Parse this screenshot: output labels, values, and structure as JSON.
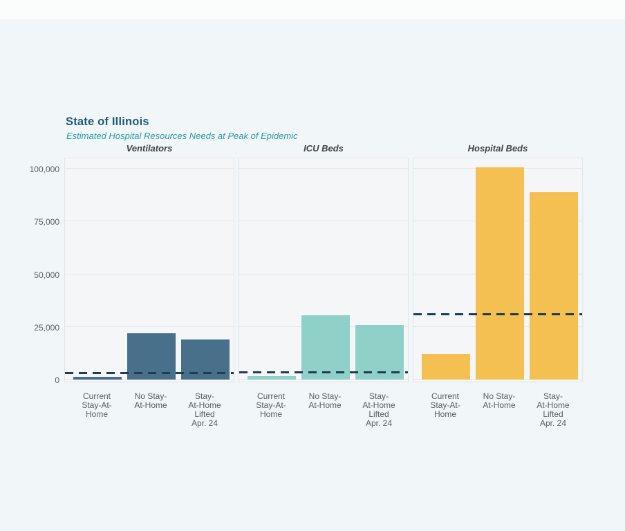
{
  "header": {
    "title": "State of Illinois",
    "subtitle": "Estimated Hospital Resources Needs at Peak of Epidemic"
  },
  "chart_data": {
    "type": "bar",
    "layout": "three side-by-side facet panels sharing one y-axis, legend none, horizontal gridlines on",
    "title": "State of Illinois",
    "subtitle": "Estimated Hospital Resources Needs at Peak of Epidemic",
    "categories": [
      "Current Stay-At-Home",
      "No Stay-At-Home",
      "Stay-At-Home Lifted Apr. 24"
    ],
    "category_label_lines": [
      [
        "Current",
        "Stay-At-",
        "Home"
      ],
      [
        "No Stay-",
        "At-Home"
      ],
      [
        "Stay-",
        "At-Home",
        "Lifted",
        "Apr. 24"
      ]
    ],
    "ylim": [
      0,
      105000
    ],
    "yticks": [
      0,
      25000,
      50000,
      75000,
      100000
    ],
    "ytick_labels": [
      "0",
      "25,000",
      "50,000",
      "75,000",
      "100,000"
    ],
    "panels": [
      {
        "title": "Ventilators",
        "bar_color": "#48708a",
        "values": [
          1300,
          22000,
          19000
        ],
        "dashed_line_value": 3000
      },
      {
        "title": "ICU Beds",
        "bar_color": "#8fd0c8",
        "values": [
          1600,
          30500,
          26000
        ],
        "dashed_line_value": 3300
      },
      {
        "title": "Hospital Beds",
        "bar_color": "#f3c051",
        "values": [
          12000,
          100500,
          89000
        ],
        "dashed_line_value": 31000
      }
    ],
    "dashed_line_color": "#203c4f"
  },
  "colors": {
    "page_background": "#f1f6f8",
    "top_strip": "#fbfdfd",
    "panel_background": "#f5f6f8",
    "panel_border": "#e2e5e9",
    "gridline": "#e4e7ea",
    "title_text": "#1d5b76",
    "subtitle_text": "#2d98a8",
    "panel_title_text": "#3f4348",
    "axis_text": "#595d62",
    "dashed_line": "#203c4f"
  }
}
